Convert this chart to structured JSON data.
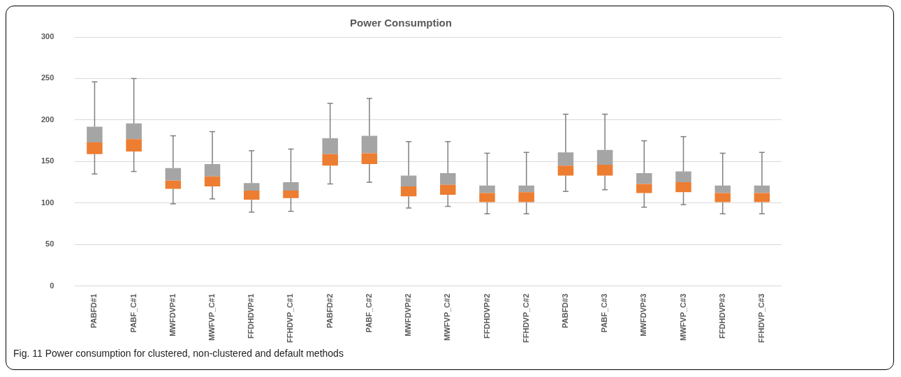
{
  "chart_data": {
    "type": "box",
    "title": "Power Consumption",
    "categories": [
      "PABFD#1",
      "PABF_C#1",
      "MWFDVP#1",
      "MWFVP_C#1",
      "FFDHDVP#1",
      "FFHDVP_C#1",
      "PABFD#2",
      "PABF_C#2",
      "MWFDVP#2",
      "MWFVP_C#2",
      "FFDHDVP#2",
      "FFHDVP_C#2",
      "PABFD#3",
      "PABF_C#3",
      "MWFDVP#3",
      "MWFVP_C#3",
      "FFDHDVP#3",
      "FFHDVP_C#3"
    ],
    "boxes": [
      {
        "low": 135,
        "q1": 159,
        "median": 173,
        "q3": 192,
        "high": 246
      },
      {
        "low": 138,
        "q1": 162,
        "median": 177,
        "q3": 196,
        "high": 250
      },
      {
        "low": 99,
        "q1": 117,
        "median": 127,
        "q3": 142,
        "high": 181
      },
      {
        "low": 105,
        "q1": 120,
        "median": 132,
        "q3": 147,
        "high": 186
      },
      {
        "low": 89,
        "q1": 104,
        "median": 115,
        "q3": 124,
        "high": 163
      },
      {
        "low": 90,
        "q1": 106,
        "median": 115,
        "q3": 125,
        "high": 165
      },
      {
        "low": 123,
        "q1": 145,
        "median": 159,
        "q3": 178,
        "high": 220
      },
      {
        "low": 125,
        "q1": 147,
        "median": 160,
        "q3": 181,
        "high": 226
      },
      {
        "low": 94,
        "q1": 108,
        "median": 120,
        "q3": 133,
        "high": 174
      },
      {
        "low": 96,
        "q1": 110,
        "median": 122,
        "q3": 136,
        "high": 174
      },
      {
        "low": 87,
        "q1": 101,
        "median": 112,
        "q3": 121,
        "high": 160
      },
      {
        "low": 87,
        "q1": 101,
        "median": 113,
        "q3": 121,
        "high": 161
      },
      {
        "low": 114,
        "q1": 133,
        "median": 145,
        "q3": 161,
        "high": 207
      },
      {
        "low": 116,
        "q1": 133,
        "median": 146,
        "q3": 164,
        "high": 207
      },
      {
        "low": 95,
        "q1": 112,
        "median": 123,
        "q3": 136,
        "high": 175
      },
      {
        "low": 98,
        "q1": 113,
        "median": 125,
        "q3": 138,
        "high": 180
      },
      {
        "low": 87,
        "q1": 101,
        "median": 112,
        "q3": 121,
        "high": 160
      },
      {
        "low": 87,
        "q1": 101,
        "median": 112,
        "q3": 121,
        "high": 161
      }
    ],
    "colors": [
      "#ed7d31",
      "#ed7d31",
      "#ed7d31",
      "#ed7d31",
      "#ed7d31",
      "#ed7d31",
      "#ed7d31",
      "#ed7d31",
      "#ed7d31",
      "#ed7d31",
      "#ed7d31",
      "#ed7d31",
      "#ed7d31",
      "#ed7d31",
      "#ed7d31",
      "#ed7d31",
      "#ed7d31",
      "#ed7d31"
    ],
    "color": "#a5a5a5",
    "ylim": [
      0,
      300
    ],
    "yticks": [
      0,
      50,
      100,
      150,
      200,
      250,
      300
    ],
    "grid": "y",
    "annotations": [
      "Fig. 11 Power consumption for clustered, non-clustered and default methods"
    ]
  }
}
